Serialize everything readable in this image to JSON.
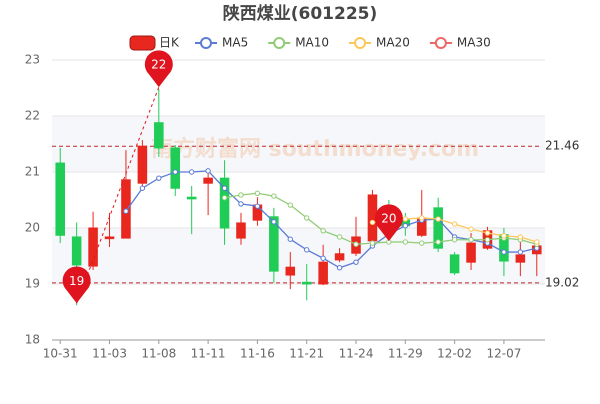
{
  "chart_data": {
    "type": "candlestick",
    "title": "陕西煤业(601225)",
    "watermark": "南方财富网 southmoney.com",
    "categories": [
      "10-31",
      null,
      null,
      "11-03",
      null,
      null,
      "11-08",
      null,
      null,
      "11-11",
      null,
      null,
      "11-16",
      null,
      null,
      "11-21",
      null,
      null,
      "11-24",
      null,
      null,
      "11-29",
      null,
      null,
      "12-02",
      null,
      null,
      "12-07",
      null,
      null
    ],
    "candles": {
      "name": "日K",
      "up_color": "#e8271f",
      "down_color": "#1fcc56",
      "open": [
        21.16,
        19.84,
        19.32,
        19.81,
        19.82,
        20.8,
        21.88,
        21.43,
        20.55,
        20.8,
        20.89,
        19.82,
        20.14,
        20.2,
        19.16,
        19.03,
        19.0,
        19.43,
        19.55,
        19.77,
        20.11,
        20.14,
        19.87,
        20.36,
        19.52,
        19.39,
        19.64,
        19.88,
        19.39,
        19.54
      ],
      "close": [
        19.87,
        19.34,
        20.0,
        19.84,
        20.86,
        21.46,
        21.43,
        20.71,
        20.52,
        20.89,
        20.0,
        20.09,
        20.41,
        19.23,
        19.3,
        19.0,
        19.39,
        19.54,
        19.84,
        20.59,
        19.96,
        20.04,
        20.18,
        19.64,
        19.2,
        19.73,
        19.95,
        19.41,
        19.52,
        19.68
      ],
      "high": [
        21.43,
        20.1,
        20.29,
        20.27,
        21.39,
        21.57,
        22.48,
        21.48,
        20.75,
        21.04,
        21.21,
        20.27,
        20.55,
        20.36,
        19.57,
        19.36,
        19.7,
        19.64,
        20.2,
        20.68,
        20.5,
        20.27,
        20.68,
        20.54,
        19.57,
        19.91,
        20.02,
        20.0,
        19.75,
        19.75
      ],
      "low": [
        19.73,
        18.62,
        19.25,
        19.66,
        19.82,
        20.75,
        21.27,
        20.57,
        19.89,
        20.23,
        19.7,
        19.7,
        20.04,
        19.02,
        18.91,
        18.71,
        18.98,
        19.39,
        19.5,
        19.7,
        19.73,
        19.86,
        19.84,
        19.57,
        19.16,
        19.25,
        19.61,
        19.14,
        19.14,
        19.14
      ]
    },
    "series": [
      {
        "name": "MA5",
        "color": "#5b7bd5",
        "values": [
          null,
          null,
          null,
          null,
          20.3,
          20.71,
          20.89,
          21.0,
          21.0,
          21.02,
          20.71,
          20.43,
          20.39,
          20.11,
          19.8,
          19.61,
          19.46,
          19.29,
          19.39,
          19.68,
          19.89,
          20.04,
          20.14,
          20.16,
          19.84,
          19.79,
          19.73,
          19.57,
          19.57,
          19.64
        ]
      },
      {
        "name": "MA10",
        "color": "#91cc75",
        "values": [
          null,
          null,
          null,
          null,
          null,
          null,
          null,
          null,
          null,
          null,
          20.54,
          20.59,
          20.62,
          20.57,
          20.41,
          20.18,
          19.95,
          19.84,
          19.71,
          19.73,
          19.75,
          19.75,
          19.73,
          19.75,
          19.79,
          19.79,
          19.79,
          19.82,
          19.79,
          19.71
        ]
      },
      {
        "name": "MA20",
        "color": "#fac858",
        "values": [
          null,
          null,
          null,
          null,
          null,
          null,
          null,
          null,
          null,
          null,
          null,
          null,
          null,
          null,
          null,
          null,
          null,
          null,
          null,
          20.1,
          20.12,
          20.16,
          20.18,
          20.16,
          20.07,
          19.98,
          19.91,
          19.86,
          19.84,
          19.75
        ]
      },
      {
        "name": "MA30",
        "color": "#ee6666",
        "values": [
          null,
          null,
          null,
          null,
          null,
          null,
          null,
          null,
          null,
          null,
          null,
          null,
          null,
          null,
          null,
          null,
          null,
          null,
          null,
          null,
          null,
          null,
          null,
          null,
          null,
          null,
          null,
          null,
          null,
          null
        ]
      }
    ],
    "hlines": [
      21.46,
      19.02
    ],
    "hline_color": "#c0272d",
    "marker_labels": [
      null,
      "19",
      null,
      null,
      null,
      null,
      "22",
      null,
      null,
      null,
      null,
      null,
      null,
      null,
      null,
      null,
      null,
      null,
      null,
      null,
      "20",
      null,
      null,
      null,
      null,
      null,
      null,
      null,
      null,
      null
    ],
    "marker_color": "#e0141e",
    "ylim": [
      18,
      23
    ],
    "yticks": [
      18,
      19,
      20,
      21,
      22,
      23
    ],
    "grid": true
  }
}
